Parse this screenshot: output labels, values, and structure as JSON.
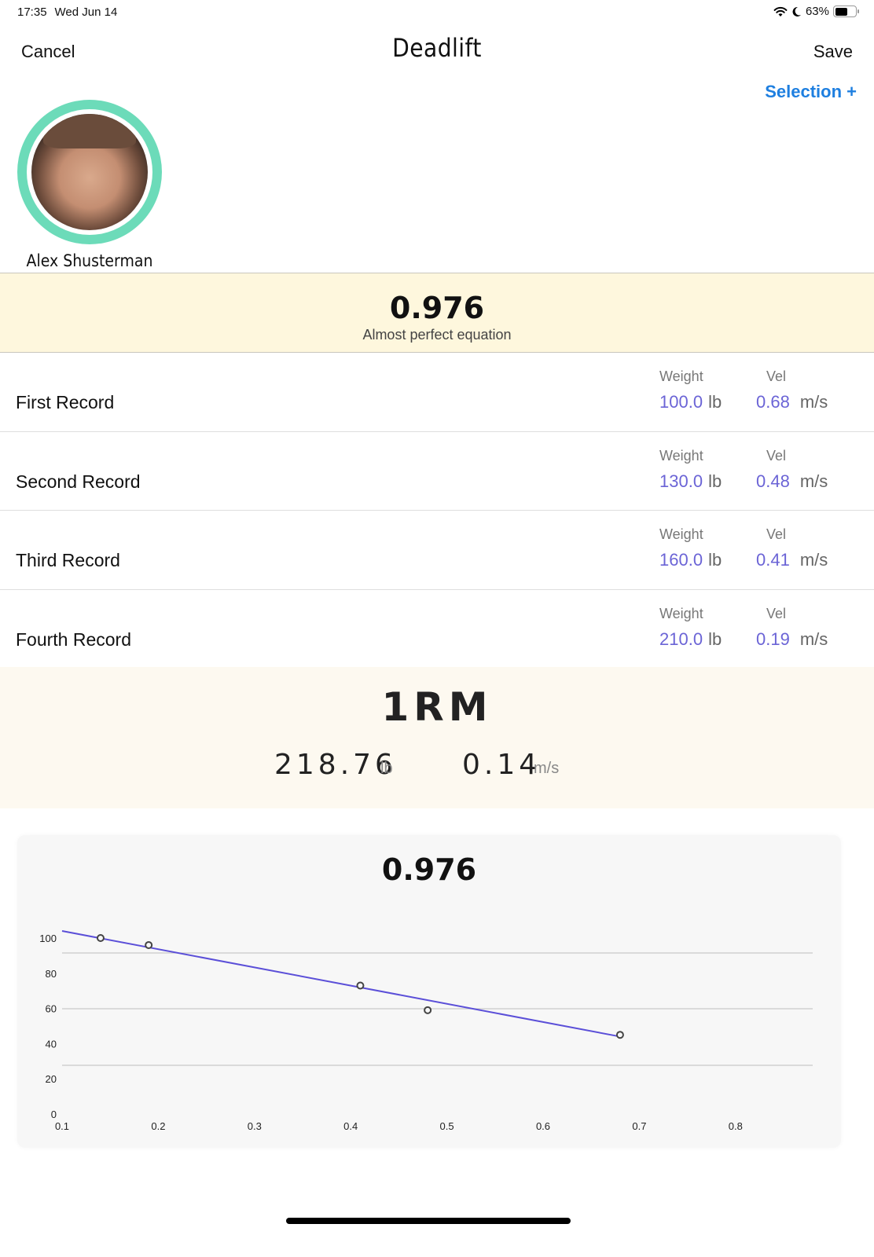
{
  "status_bar": {
    "time": "17:35",
    "date": "Wed Jun 14",
    "wifi_icon": "wifi-icon",
    "focus_icon": "moon-icon",
    "battery_percent": "63%",
    "battery_level": 63
  },
  "nav": {
    "cancel_label": "Cancel",
    "title": "Deadlift",
    "save_label": "Save",
    "selection_label": "Selection +"
  },
  "athlete": {
    "name": "Alex Shusterman",
    "ring_color": "#6cdbb9"
  },
  "equation": {
    "value": "0.976",
    "label": "Almost perfect equation"
  },
  "records": [
    {
      "name": "First Record",
      "weight_label": "Weight",
      "weight": "100.0",
      "weight_unit": "lb",
      "vel_label": "Vel",
      "vel": "0.68",
      "vel_unit": "m/s"
    },
    {
      "name": "Second Record",
      "weight_label": "Weight",
      "weight": "130.0",
      "weight_unit": "lb",
      "vel_label": "Vel",
      "vel": "0.48",
      "vel_unit": "m/s"
    },
    {
      "name": "Third Record",
      "weight_label": "Weight",
      "weight": "160.0",
      "weight_unit": "lb",
      "vel_label": "Vel",
      "vel": "0.41",
      "vel_unit": "m/s"
    },
    {
      "name": "Fourth Record",
      "weight_label": "Weight",
      "weight": "210.0",
      "weight_unit": "lb",
      "vel_label": "Vel",
      "vel": "0.19",
      "vel_unit": "m/s"
    }
  ],
  "one_rm": {
    "title": "1RM",
    "weight": "218.76",
    "weight_unit": "lb",
    "vel": "0.14",
    "vel_unit": "m/s"
  },
  "chart": {
    "title": "0.976"
  },
  "colors": {
    "accent_blue": "#1e7fe0",
    "value_purple": "#6b64d6",
    "line_color": "#5b4fd8",
    "score_band_bg": "#fef7dd",
    "rm_band_bg": "#fdf9f0"
  },
  "chart_data": {
    "type": "scatter",
    "title": "0.976",
    "xlabel": "",
    "ylabel": "",
    "x_ticks": [
      "0.1",
      "0.2",
      "0.3",
      "0.4",
      "0.5",
      "0.6",
      "0.7",
      "0.8"
    ],
    "y_ticks": [
      "0",
      "20",
      "40",
      "60",
      "80",
      "100"
    ],
    "xlim": [
      0.1,
      0.85
    ],
    "ylim": [
      0,
      100
    ],
    "grid": "horizontal",
    "series": [
      {
        "name": "records",
        "kind": "points",
        "x": [
          0.14,
          0.19,
          0.41,
          0.48,
          0.68
        ],
        "y": [
          100,
          96,
          73,
          59,
          45
        ]
      },
      {
        "name": "trend",
        "kind": "line",
        "x": [
          0.1,
          0.68
        ],
        "y": [
          104,
          44
        ]
      }
    ]
  }
}
